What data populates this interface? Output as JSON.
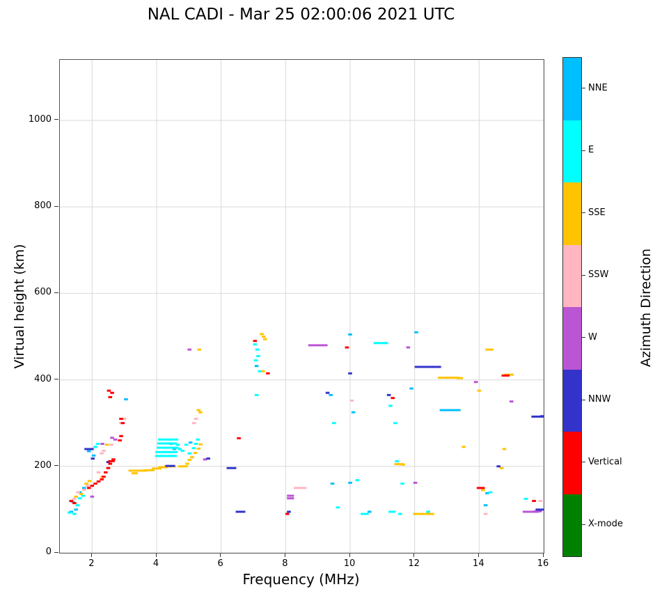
{
  "chart_data": {
    "type": "scatter",
    "title": "NAL CADI - Mar 25 02:00:06 2021 UTC",
    "xlabel": "Frequency (MHz)",
    "ylabel": "Virtual height (km)",
    "xlim": [
      1,
      16
    ],
    "ylim": [
      0,
      1140
    ],
    "xticks": [
      2,
      4,
      6,
      8,
      10,
      12,
      14,
      16
    ],
    "yticks": [
      0,
      200,
      400,
      600,
      800,
      1000
    ],
    "grid": true,
    "grid_color": "#d9d9d9",
    "marker_w": 0.12,
    "series": [
      {
        "name": "NNE",
        "color": "#00BFFF",
        "points": [
          [
            1.35,
            95
          ],
          [
            1.5,
            100
          ],
          [
            1.4,
            118
          ],
          [
            1.62,
            140
          ],
          [
            1.75,
            150
          ],
          [
            1.9,
            235
          ],
          [
            2.0,
            240
          ],
          [
            2.05,
            225
          ],
          [
            3.05,
            355
          ],
          [
            4.45,
            252
          ],
          [
            4.55,
            240
          ],
          [
            5.05,
            255
          ],
          [
            7.1,
            432
          ],
          [
            9.4,
            365
          ],
          [
            9.45,
            160
          ],
          [
            10.0,
            505
          ],
          [
            10.1,
            325
          ],
          [
            10.0,
            162
          ],
          [
            10.6,
            95
          ],
          [
            11.9,
            380
          ],
          [
            12.05,
            510
          ],
          [
            13.0,
            330,
            0.45
          ],
          [
            13.3,
            330,
            0.25
          ],
          [
            14.2,
            110
          ],
          [
            14.25,
            138
          ]
        ]
      },
      {
        "name": "E",
        "color": "#00FFFF",
        "points": [
          [
            1.3,
            93
          ],
          [
            1.45,
            90
          ],
          [
            1.55,
            110
          ],
          [
            1.62,
            126
          ],
          [
            1.72,
            132
          ],
          [
            2.1,
            245
          ],
          [
            2.18,
            252
          ],
          [
            4.1,
            224,
            0.3
          ],
          [
            4.3,
            224,
            0.3
          ],
          [
            4.5,
            224,
            0.25
          ],
          [
            4.12,
            233,
            0.32
          ],
          [
            4.32,
            233,
            0.3
          ],
          [
            4.52,
            233,
            0.26
          ],
          [
            4.18,
            243,
            0.35
          ],
          [
            4.4,
            243,
            0.3
          ],
          [
            4.58,
            243,
            0.2
          ],
          [
            4.22,
            253,
            0.4
          ],
          [
            4.48,
            253,
            0.3
          ],
          [
            4.25,
            262,
            0.42
          ],
          [
            4.52,
            262,
            0.3
          ],
          [
            4.65,
            250
          ],
          [
            4.72,
            240
          ],
          [
            4.8,
            236
          ],
          [
            4.92,
            250
          ],
          [
            5.02,
            230
          ],
          [
            5.15,
            242
          ],
          [
            5.22,
            252
          ],
          [
            5.28,
            262
          ],
          [
            7.05,
            482
          ],
          [
            7.12,
            470
          ],
          [
            7.15,
            455
          ],
          [
            7.08,
            445
          ],
          [
            7.2,
            420
          ],
          [
            7.1,
            365
          ],
          [
            9.5,
            300
          ],
          [
            9.62,
            105
          ],
          [
            10.22,
            168
          ],
          [
            10.45,
            90,
            0.25
          ],
          [
            10.9,
            485,
            0.35
          ],
          [
            11.12,
            485
          ],
          [
            11.25,
            340
          ],
          [
            11.4,
            300
          ],
          [
            11.45,
            212
          ],
          [
            11.3,
            95,
            0.22
          ],
          [
            11.55,
            90
          ],
          [
            11.62,
            160
          ],
          [
            12.42,
            95
          ],
          [
            14.35,
            140
          ],
          [
            15.45,
            125
          ]
        ]
      },
      {
        "name": "SSE",
        "color": "#FFC400",
        "points": [
          [
            1.5,
            130
          ],
          [
            1.66,
            136
          ],
          [
            1.82,
            160
          ],
          [
            1.92,
            166
          ],
          [
            2.32,
            176
          ],
          [
            2.46,
            250
          ],
          [
            3.28,
            190,
            0.3
          ],
          [
            3.52,
            190,
            0.35
          ],
          [
            3.76,
            191,
            0.35
          ],
          [
            4.0,
            195,
            0.3
          ],
          [
            4.2,
            198,
            0.3
          ],
          [
            4.36,
            200,
            0.25
          ],
          [
            4.5,
            200,
            0.2
          ],
          [
            3.32,
            184,
            0.2
          ],
          [
            4.82,
            200,
            0.3
          ],
          [
            4.95,
            206
          ],
          [
            5.02,
            215
          ],
          [
            5.1,
            221
          ],
          [
            5.2,
            231
          ],
          [
            5.3,
            241
          ],
          [
            5.36,
            251
          ],
          [
            5.3,
            330
          ],
          [
            5.36,
            325
          ],
          [
            5.32,
            470
          ],
          [
            7.26,
            506
          ],
          [
            7.32,
            500
          ],
          [
            7.36,
            494
          ],
          [
            7.3,
            420
          ],
          [
            11.52,
            205,
            0.3
          ],
          [
            11.64,
            204
          ],
          [
            12.2,
            90,
            0.5
          ],
          [
            12.48,
            90,
            0.25
          ],
          [
            12.92,
            405,
            0.4
          ],
          [
            13.22,
            405,
            0.35
          ],
          [
            13.4,
            404,
            0.2
          ],
          [
            13.52,
            245
          ],
          [
            14.0,
            375
          ],
          [
            14.12,
            145
          ],
          [
            14.32,
            470,
            0.25
          ],
          [
            14.7,
            196
          ],
          [
            14.78,
            240
          ],
          [
            14.92,
            412,
            0.3
          ]
        ]
      },
      {
        "name": "SSW",
        "color": "#FFB6C1",
        "points": [
          [
            1.45,
            125
          ],
          [
            1.56,
            140
          ],
          [
            1.75,
            146
          ],
          [
            1.86,
            155
          ],
          [
            2.2,
            186
          ],
          [
            2.3,
            230
          ],
          [
            2.36,
            236
          ],
          [
            2.6,
            250
          ],
          [
            2.9,
            300
          ],
          [
            3.0,
            310
          ],
          [
            5.16,
            300
          ],
          [
            5.22,
            310
          ],
          [
            8.45,
            150,
            0.4
          ],
          [
            10.05,
            352
          ],
          [
            14.2,
            90
          ],
          [
            15.9,
            120
          ]
        ]
      },
      {
        "name": "W",
        "color": "#BA55D3",
        "points": [
          [
            2.0,
            130
          ],
          [
            2.32,
            252
          ],
          [
            2.62,
            266
          ],
          [
            2.72,
            262
          ],
          [
            5.02,
            470
          ],
          [
            5.5,
            216
          ],
          [
            8.15,
            132,
            0.22
          ],
          [
            8.15,
            126,
            0.22
          ],
          [
            9.0,
            480,
            0.6
          ],
          [
            11.8,
            475
          ],
          [
            12.02,
            162
          ],
          [
            13.9,
            395
          ],
          [
            15.0,
            350
          ],
          [
            15.6,
            95,
            0.5
          ],
          [
            15.82,
            96,
            0.25
          ]
        ]
      },
      {
        "name": "NNW",
        "color": "#3333CC",
        "points": [
          [
            1.9,
            240,
            0.28
          ],
          [
            2.02,
            218
          ],
          [
            2.5,
            210
          ],
          [
            4.42,
            201,
            0.3
          ],
          [
            5.6,
            218
          ],
          [
            6.32,
            196,
            0.3
          ],
          [
            6.6,
            95,
            0.3
          ],
          [
            8.1,
            95
          ],
          [
            9.3,
            370
          ],
          [
            10.0,
            415
          ],
          [
            11.2,
            365
          ],
          [
            12.3,
            430,
            0.6
          ],
          [
            12.68,
            430,
            0.28
          ],
          [
            14.6,
            200
          ],
          [
            15.82,
            315,
            0.4
          ],
          [
            15.95,
            316
          ],
          [
            15.9,
            100,
            0.3
          ]
        ]
      },
      {
        "name": "Vertical",
        "color": "#FF0000",
        "points": [
          [
            1.35,
            120
          ],
          [
            1.45,
            115
          ],
          [
            1.9,
            150
          ],
          [
            2.0,
            155
          ],
          [
            2.1,
            160
          ],
          [
            2.2,
            165
          ],
          [
            2.3,
            170
          ],
          [
            2.36,
            176
          ],
          [
            2.42,
            186
          ],
          [
            2.5,
            196
          ],
          [
            2.56,
            206
          ],
          [
            2.6,
            212,
            0.2
          ],
          [
            2.66,
            216
          ],
          [
            2.56,
            360
          ],
          [
            2.62,
            370
          ],
          [
            2.52,
            375
          ],
          [
            2.86,
            260
          ],
          [
            2.9,
            270
          ],
          [
            2.95,
            300
          ],
          [
            2.9,
            310
          ],
          [
            6.55,
            265
          ],
          [
            7.05,
            490
          ],
          [
            7.45,
            415
          ],
          [
            8.05,
            90
          ],
          [
            9.9,
            475
          ],
          [
            11.32,
            358
          ],
          [
            14.05,
            150,
            0.25
          ],
          [
            14.82,
            410,
            0.25
          ],
          [
            15.7,
            120
          ]
        ]
      },
      {
        "name": "X-mode",
        "color": "#008000",
        "points": []
      }
    ]
  },
  "legend": {
    "title": "Azimuth Direction",
    "items": [
      {
        "label": "NNE",
        "color": "#00BFFF"
      },
      {
        "label": "E",
        "color": "#00FFFF"
      },
      {
        "label": "SSE",
        "color": "#FFC400"
      },
      {
        "label": "SSW",
        "color": "#FFB6C1"
      },
      {
        "label": "W",
        "color": "#BA55D3"
      },
      {
        "label": "NNW",
        "color": "#3333CC"
      },
      {
        "label": "Vertical",
        "color": "#FF0000"
      },
      {
        "label": "X-mode",
        "color": "#008000"
      }
    ]
  }
}
